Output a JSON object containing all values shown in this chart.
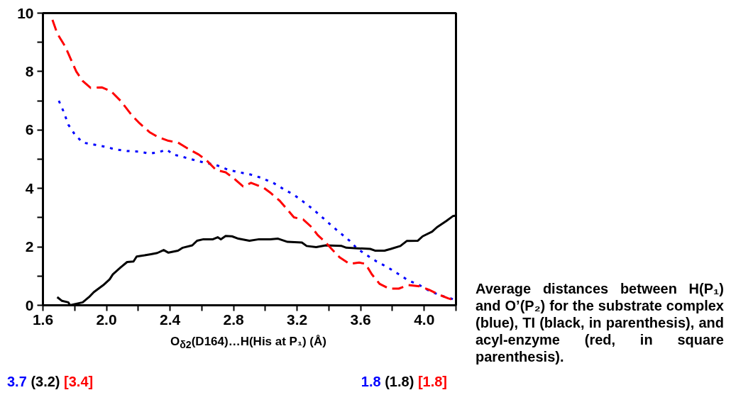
{
  "chart_data": {
    "type": "line",
    "xlabel": "O$_{δ2}$(D164)…H(His at P₁) (Å)",
    "xlim": [
      1.6,
      4.2
    ],
    "ylim": [
      0,
      10
    ],
    "xticks": [
      1.6,
      {
        "value": 1.8,
        "label": null
      },
      "2.0",
      {
        "value": 2.2,
        "label": null
      },
      2.4,
      {
        "value": 2.6,
        "label": null
      },
      2.8,
      {
        "value": 3.0,
        "label": null
      },
      3.2,
      {
        "value": 3.4,
        "label": null
      },
      3.6,
      {
        "value": 3.8,
        "label": null
      },
      "4.0",
      {
        "value": 4.2,
        "label": null
      }
    ],
    "yticks": [
      0,
      {
        "value": 1,
        "label": null
      },
      2,
      {
        "value": 3,
        "label": null
      },
      4,
      {
        "value": 5,
        "label": null
      },
      6,
      {
        "value": 7,
        "label": null
      },
      8,
      {
        "value": 9,
        "label": null
      },
      10
    ],
    "grid": false,
    "series": [
      {
        "color": "#0000ff",
        "line_style": "dotted",
        "x": [
          1.7,
          1.73,
          1.76,
          1.8,
          1.85,
          1.93,
          1.99,
          2.06,
          2.13,
          2.21,
          2.27,
          2.33,
          2.38,
          2.42,
          2.48,
          2.56,
          2.62,
          2.69,
          2.77,
          2.84,
          2.91,
          2.97,
          3.05,
          3.12,
          3.18,
          3.24,
          3.3,
          3.35,
          3.41,
          3.47,
          3.53,
          3.58,
          3.64,
          3.7,
          3.77,
          3.84,
          3.9,
          3.97,
          4.03,
          4.1,
          4.17,
          4.2
        ],
        "values": [
          7.0,
          6.63,
          6.18,
          5.85,
          5.57,
          5.49,
          5.43,
          5.33,
          5.28,
          5.26,
          5.19,
          5.24,
          5.33,
          5.16,
          5.08,
          4.96,
          4.88,
          4.8,
          4.63,
          4.55,
          4.47,
          4.37,
          4.19,
          3.96,
          3.78,
          3.54,
          3.29,
          3.05,
          2.76,
          2.48,
          2.21,
          1.93,
          1.71,
          1.5,
          1.3,
          1.06,
          0.85,
          0.69,
          0.5,
          0.34,
          0.23,
          0.16
        ]
      },
      {
        "color": "#000000",
        "line_style": "solid",
        "x": [
          1.69,
          1.72,
          1.76,
          1.77,
          1.8,
          1.85,
          1.89,
          1.92,
          1.98,
          2.02,
          2.04,
          2.09,
          2.13,
          2.17,
          2.19,
          2.24,
          2.28,
          2.32,
          2.36,
          2.39,
          2.45,
          2.48,
          2.54,
          2.57,
          2.61,
          2.67,
          2.7,
          2.72,
          2.75,
          2.79,
          2.83,
          2.9,
          2.96,
          3.03,
          3.08,
          3.14,
          3.23,
          3.26,
          3.32,
          3.38,
          3.48,
          3.51,
          3.58,
          3.66,
          3.69,
          3.75,
          3.79,
          3.85,
          3.89,
          3.96,
          3.99,
          4.05,
          4.08,
          4.14,
          4.18,
          4.2
        ],
        "values": [
          0.28,
          0.15,
          0.1,
          0.0,
          0.04,
          0.1,
          0.28,
          0.45,
          0.69,
          0.89,
          1.06,
          1.3,
          1.48,
          1.5,
          1.67,
          1.71,
          1.75,
          1.79,
          1.89,
          1.8,
          1.87,
          1.97,
          2.05,
          2.21,
          2.26,
          2.26,
          2.33,
          2.26,
          2.37,
          2.36,
          2.28,
          2.21,
          2.26,
          2.26,
          2.28,
          2.17,
          2.15,
          2.03,
          1.99,
          2.05,
          2.03,
          1.97,
          1.95,
          1.93,
          1.87,
          1.87,
          1.93,
          2.03,
          2.2,
          2.21,
          2.36,
          2.52,
          2.67,
          2.89,
          3.05,
          3.07
        ]
      },
      {
        "color": "#ff0000",
        "line_style": "dashed",
        "x": [
          1.66,
          1.69,
          1.74,
          1.81,
          1.85,
          1.9,
          1.97,
          2.03,
          2.09,
          2.16,
          2.21,
          2.27,
          2.32,
          2.39,
          2.45,
          2.51,
          2.58,
          2.63,
          2.69,
          2.75,
          2.8,
          2.86,
          2.91,
          2.99,
          3.03,
          3.09,
          3.13,
          3.18,
          3.24,
          3.29,
          3.33,
          3.38,
          3.42,
          3.47,
          3.53,
          3.59,
          3.63,
          3.67,
          3.72,
          3.78,
          3.84,
          3.9,
          3.97,
          4.03,
          4.09,
          4.15,
          4.2
        ],
        "values": [
          9.77,
          9.3,
          8.86,
          8.0,
          7.68,
          7.44,
          7.46,
          7.32,
          6.99,
          6.5,
          6.22,
          5.93,
          5.77,
          5.63,
          5.57,
          5.37,
          5.16,
          4.96,
          4.63,
          4.55,
          4.35,
          4.07,
          4.19,
          4.02,
          3.86,
          3.58,
          3.33,
          3.01,
          2.93,
          2.68,
          2.4,
          2.15,
          1.91,
          1.63,
          1.42,
          1.46,
          1.42,
          1.06,
          0.73,
          0.57,
          0.57,
          0.69,
          0.65,
          0.53,
          0.37,
          0.24,
          0.15
        ]
      }
    ],
    "annotations": [
      "3.7",
      "(3.2)",
      "[3.4]",
      "1.8",
      "(1.8)",
      "[1.8]",
      "Average distances between H(P₁) and O’(P₂) for the substrate complex (blue), TI (black, in parenthesis), and acyl-enzyme (red, in square parenthesis)."
    ]
  }
}
